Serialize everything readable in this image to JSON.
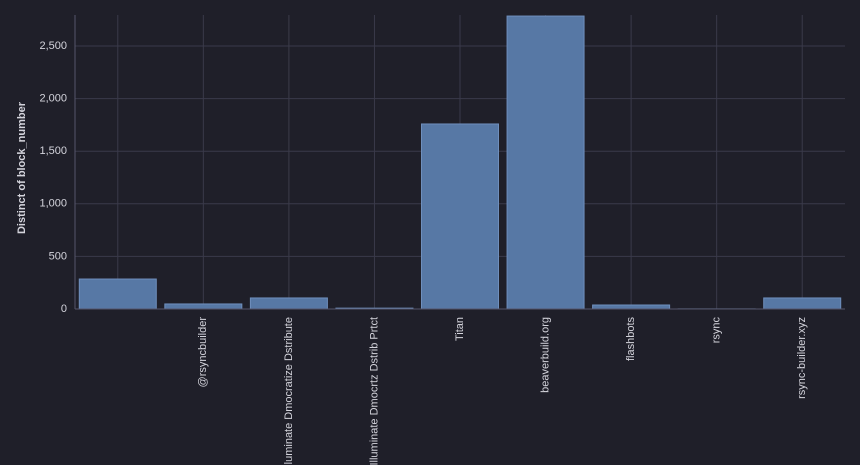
{
  "chart_data": {
    "type": "bar",
    "y_label": "Distinct of block_number",
    "categories": [
      null,
      "@rsyncbuilder",
      "Illuminate Dmocratize Dstribute",
      "Illuminate Dmocrtz Dstrib Prtct",
      "Titan",
      "beaverbuild.org",
      "flashbots",
      "rsync",
      "rsync-builder.xyz"
    ],
    "values": [
      285,
      48,
      105,
      8,
      1759,
      2785,
      38,
      1,
      105
    ],
    "color": "#5778a5",
    "ylim": [
      0,
      2795
    ],
    "yticks": [
      0,
      500,
      {
        "value": 1000,
        "label": "1,000"
      },
      {
        "value": 1500,
        "label": "1,500"
      },
      {
        "value": 2000,
        "label": "2,000"
      },
      {
        "value": 2500,
        "label": "2,500"
      }
    ],
    "grid": true
  }
}
